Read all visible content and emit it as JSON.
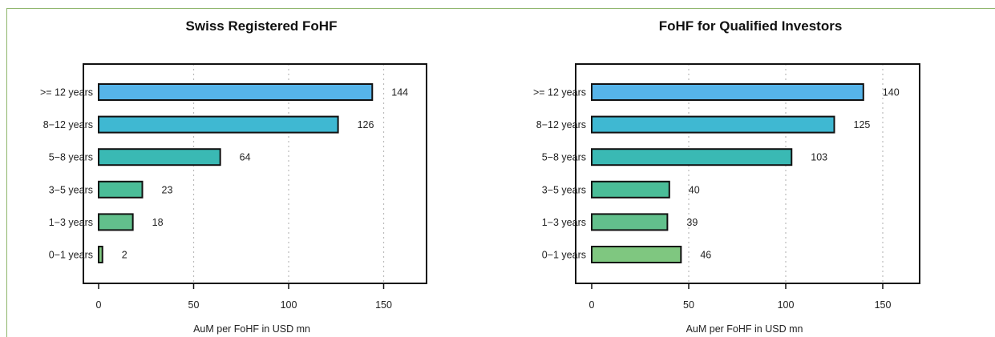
{
  "chart_data": [
    {
      "type": "bar",
      "orientation": "horizontal",
      "title": "Swiss Registered FoHF",
      "xlabel": "AuM per FoHF in USD mn",
      "ylabel": "",
      "categories": [
        ">= 12 years",
        "8−12 years",
        "5−8 years",
        "3−5 years",
        "1−3 years",
        "0−1 years"
      ],
      "values": [
        144,
        126,
        64,
        23,
        18,
        2
      ],
      "value_labels": [
        "144",
        "126",
        "64",
        "23",
        "18",
        "2"
      ],
      "xlim": [
        0,
        160
      ],
      "xticks": [
        0,
        50,
        100,
        150
      ],
      "xtick_labels": [
        "0",
        "50",
        "100",
        "150"
      ],
      "bar_colors": [
        "#56b4e9",
        "#3fb8d2",
        "#3ab9b4",
        "#4bbd98",
        "#62c08c",
        "#7fc780"
      ],
      "grid": "vertical-dotted"
    },
    {
      "type": "bar",
      "orientation": "horizontal",
      "title": "FoHF for Qualified Investors",
      "xlabel": "AuM per FoHF in USD mn",
      "ylabel": "",
      "categories": [
        ">= 12 years",
        "8−12 years",
        "5−8 years",
        "3−5 years",
        "1−3 years",
        "0−1 years"
      ],
      "values": [
        140,
        125,
        103,
        40,
        39,
        46
      ],
      "value_labels": [
        "140",
        "125",
        "103",
        "40",
        "39",
        "46"
      ],
      "xlim": [
        0,
        160
      ],
      "xticks": [
        0,
        50,
        100,
        150
      ],
      "xtick_labels": [
        "0",
        "50",
        "100",
        "150"
      ],
      "bar_colors": [
        "#56b4e9",
        "#3fb8d2",
        "#3ab9b4",
        "#4bbd98",
        "#62c08c",
        "#7fc780"
      ],
      "grid": "vertical-dotted"
    }
  ]
}
